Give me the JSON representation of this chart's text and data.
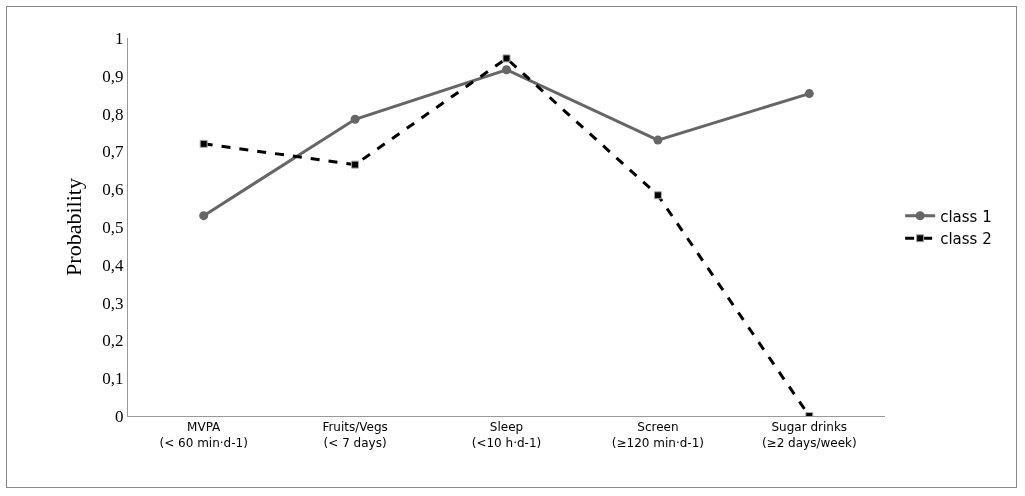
{
  "chart_data": {
    "type": "line",
    "ylabel": "Probability",
    "categories": [
      "MVPA\n(< 60 min·d-1)",
      "Fruits/Vegs\n(< 7 days)",
      "Sleep\n(<10 h·d-1)",
      "Screen\n(≥120 min·d-1)",
      "Sugar drinks\n(≥2 days/week)"
    ],
    "series": [
      {
        "name": "class 1",
        "color": "#666666",
        "marker": "circle",
        "line_style": "solid",
        "values": [
          0.53,
          0.785,
          0.916,
          0.73,
          0.853
        ]
      },
      {
        "name": "class 2",
        "color": "#000000",
        "marker": "square",
        "line_style": "dashed",
        "values": [
          0.72,
          0.665,
          0.946,
          0.584,
          0
        ]
      }
    ],
    "ylim": [
      0,
      1
    ],
    "yticks": [
      {
        "value": 0,
        "label": "0"
      },
      {
        "value": 0.1,
        "label": "0,1"
      },
      {
        "value": 0.2,
        "label": "0,2"
      },
      {
        "value": 0.3,
        "label": "0,3"
      },
      {
        "value": 0.4,
        "label": "0,4"
      },
      {
        "value": 0.5,
        "label": "0,5"
      },
      {
        "value": 0.6,
        "label": "0,6"
      },
      {
        "value": 0.7,
        "label": "0,7"
      },
      {
        "value": 0.8,
        "label": "0,8"
      },
      {
        "value": 0.9,
        "label": "0,9"
      },
      {
        "value": 1,
        "label": "1"
      }
    ],
    "grid": false,
    "legend": "right"
  }
}
